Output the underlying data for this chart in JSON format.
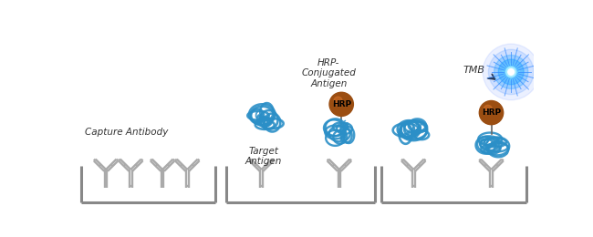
{
  "bg_color": "#ffffff",
  "antibody_color": "#aaaaaa",
  "plate_color": "#888888",
  "antigen_blue": "#2b8fc7",
  "hrp_brown": "#9B4E12",
  "text_color": "#333333",
  "labels": {
    "capture": "Capture Antibody",
    "target": "Target\nAntigen",
    "hrp_conj": "HRP-\nConjugated\nAntigen",
    "tmb": "TMB",
    "hrp": "HRP"
  }
}
